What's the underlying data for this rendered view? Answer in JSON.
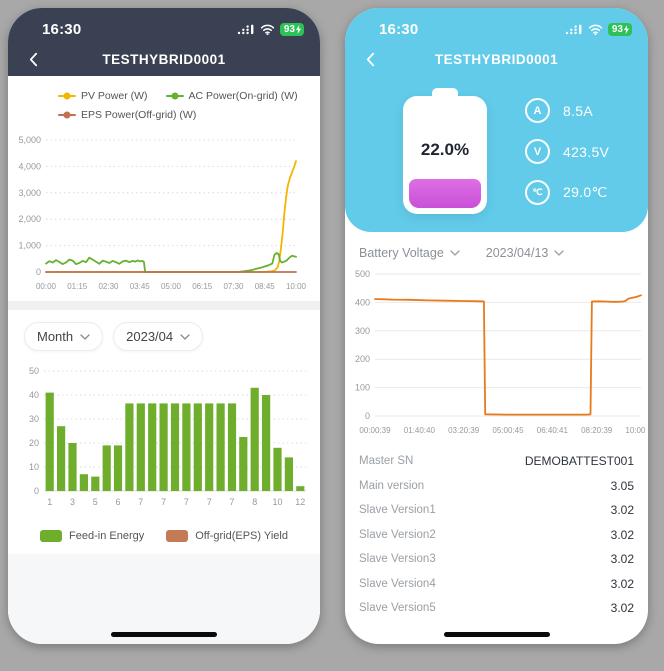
{
  "page": {
    "background": "#a8a8a8"
  },
  "left_phone": {
    "status_bar": {
      "time": "16:30",
      "battery_percent": "93"
    },
    "nav": {
      "title": "TESTHYBRID0001"
    },
    "selectors": {
      "period": "Month",
      "date": "2023/04"
    }
  },
  "right_phone": {
    "status_bar": {
      "time": "16:30",
      "battery_percent": "93"
    },
    "nav": {
      "title": "TESTHYBRID0001"
    },
    "battery": {
      "percent": "22.0%",
      "fill_color": "#c94fd8",
      "stats": [
        {
          "icon": "A",
          "value": "8.5A"
        },
        {
          "icon": "V",
          "value": "423.5V"
        },
        {
          "icon": "℃",
          "value": "29.0℃"
        }
      ]
    },
    "selectors": {
      "metric": "Battery Voltage",
      "date": "2023/04/13"
    },
    "info_table": {
      "rows": [
        {
          "label": "Master SN",
          "value": "DEMOBATTEST001"
        },
        {
          "label": "Main version",
          "value": "3.05"
        },
        {
          "label": "Slave Version1",
          "value": "3.02"
        },
        {
          "label": "Slave Version2",
          "value": "3.02"
        },
        {
          "label": "Slave Version3",
          "value": "3.02"
        },
        {
          "label": "Slave Version4",
          "value": "3.02"
        },
        {
          "label": "Slave Version5",
          "value": "3.02"
        }
      ]
    }
  },
  "chart_data": [
    {
      "type": "line",
      "title": "Daily power curves",
      "xrange": [
        0,
        600
      ],
      "ymax": 5000,
      "yticks": [
        {
          "v": 0,
          "t": "0"
        },
        {
          "v": 1000,
          "t": "1,000"
        },
        {
          "v": 2000,
          "t": "2,000"
        },
        {
          "v": 3000,
          "t": "3,000"
        },
        {
          "v": 4000,
          "t": "4,000"
        },
        {
          "v": 5000,
          "t": "5,000"
        }
      ],
      "xticks": [
        "00:00",
        "01:15",
        "02:30",
        "03:45",
        "05:00",
        "06:15",
        "07:30",
        "08:45",
        "10:00"
      ],
      "series": [
        {
          "name": "PV Power (W)",
          "color": "#f2b600",
          "points": [
            [
              0,
              0
            ],
            [
              60,
              0
            ],
            [
              120,
              0
            ],
            [
              180,
              0
            ],
            [
              240,
              0
            ],
            [
              300,
              0
            ],
            [
              360,
              0
            ],
            [
              420,
              0
            ],
            [
              480,
              0
            ],
            [
              510,
              0
            ],
            [
              530,
              8
            ],
            [
              542,
              25
            ],
            [
              550,
              70
            ],
            [
              556,
              180
            ],
            [
              560,
              420
            ],
            [
              564,
              900
            ],
            [
              568,
              1500
            ],
            [
              572,
              2200
            ],
            [
              576,
              2800
            ],
            [
              580,
              3250
            ],
            [
              585,
              3550
            ],
            [
              590,
              3750
            ],
            [
              595,
              3950
            ],
            [
              600,
              4200
            ]
          ]
        },
        {
          "name": "AC Power(On-grid) (W)",
          "color": "#63b32e",
          "points": [
            [
              0,
              320
            ],
            [
              8,
              410
            ],
            [
              16,
              360
            ],
            [
              24,
              450
            ],
            [
              32,
              380
            ],
            [
              40,
              300
            ],
            [
              48,
              360
            ],
            [
              56,
              470
            ],
            [
              64,
              430
            ],
            [
              72,
              300
            ],
            [
              80,
              340
            ],
            [
              88,
              420
            ],
            [
              96,
              370
            ],
            [
              104,
              540
            ],
            [
              112,
              470
            ],
            [
              120,
              390
            ],
            [
              128,
              310
            ],
            [
              136,
              430
            ],
            [
              144,
              390
            ],
            [
              152,
              340
            ],
            [
              160,
              420
            ],
            [
              168,
              370
            ],
            [
              176,
              310
            ],
            [
              184,
              400
            ],
            [
              192,
              430
            ],
            [
              200,
              370
            ],
            [
              208,
              420
            ],
            [
              214,
              390
            ],
            [
              220,
              440
            ],
            [
              226,
              400
            ],
            [
              231,
              420
            ],
            [
              235,
              380
            ],
            [
              238,
              0
            ],
            [
              300,
              0
            ],
            [
              360,
              0
            ],
            [
              420,
              0
            ],
            [
              455,
              0
            ],
            [
              465,
              8
            ],
            [
              475,
              25
            ],
            [
              485,
              50
            ],
            [
              495,
              80
            ],
            [
              505,
              120
            ],
            [
              515,
              160
            ],
            [
              525,
              210
            ],
            [
              535,
              260
            ],
            [
              543,
              320
            ],
            [
              548,
              640
            ],
            [
              553,
              720
            ],
            [
              558,
              690
            ],
            [
              562,
              420
            ],
            [
              566,
              360
            ],
            [
              572,
              390
            ],
            [
              578,
              440
            ],
            [
              584,
              540
            ],
            [
              590,
              615
            ],
            [
              595,
              600
            ],
            [
              600,
              575
            ]
          ]
        },
        {
          "name": "EPS Power(Off-grid) (W)",
          "color": "#c0714e",
          "points": [
            [
              0,
              0
            ],
            [
              600,
              0
            ]
          ]
        }
      ]
    },
    {
      "type": "bar",
      "title": "Monthly energy",
      "ymax": 50,
      "yticks": [
        {
          "v": 0,
          "t": "0"
        },
        {
          "v": 10,
          "t": "10"
        },
        {
          "v": 20,
          "t": "20"
        },
        {
          "v": 30,
          "t": "30"
        },
        {
          "v": 40,
          "t": "40"
        },
        {
          "v": 50,
          "t": "50"
        }
      ],
      "xlabels": [
        "1",
        "3",
        "5",
        "6",
        "7",
        "7",
        "7",
        "7",
        "7",
        "8",
        "10",
        "12"
      ],
      "values": [
        41,
        27,
        20,
        7,
        6,
        19,
        19,
        36.5,
        36.5,
        36.5,
        36.5,
        36.5,
        36.5,
        36.5,
        36.5,
        36.5,
        36.5,
        22.5,
        43,
        40,
        18,
        14,
        2
      ],
      "color": "#6fad2c",
      "legend": [
        {
          "label": "Feed-in Energy",
          "color": "#6fad2c"
        },
        {
          "label": "Off-grid(EPS) Yield",
          "color": "#c57a56"
        }
      ]
    },
    {
      "type": "line",
      "title": "Battery Voltage",
      "xrange": [
        0,
        601
      ],
      "ymax": 500,
      "yticks": [
        {
          "v": 0,
          "t": "0"
        },
        {
          "v": 100,
          "t": "100"
        },
        {
          "v": 200,
          "t": "200"
        },
        {
          "v": 300,
          "t": "300"
        },
        {
          "v": 400,
          "t": "400"
        },
        {
          "v": 500,
          "t": "500"
        }
      ],
      "xticks": [
        "00:00:39",
        "01:40:40",
        "03:20:39",
        "05:00:45",
        "06:40:41",
        "08:20:39",
        "10:00:41"
      ],
      "series": [
        {
          "name": "Battery Voltage",
          "color": "#e87a1d",
          "points": [
            [
              0,
              412
            ],
            [
              40,
              410
            ],
            [
              80,
              409
            ],
            [
              120,
              407
            ],
            [
              160,
              406
            ],
            [
              200,
              405
            ],
            [
              240,
              404
            ],
            [
              246,
              403
            ],
            [
              249,
              6
            ],
            [
              300,
              5
            ],
            [
              360,
              5
            ],
            [
              420,
              5
            ],
            [
              480,
              5
            ],
            [
              487,
              6
            ],
            [
              490,
              403
            ],
            [
              505,
              404
            ],
            [
              520,
              403
            ],
            [
              535,
              402
            ],
            [
              550,
              402
            ],
            [
              560,
              403
            ],
            [
              566,
              405
            ],
            [
              572,
              413
            ],
            [
              580,
              416
            ],
            [
              590,
              419
            ],
            [
              601,
              425
            ]
          ]
        }
      ]
    }
  ]
}
